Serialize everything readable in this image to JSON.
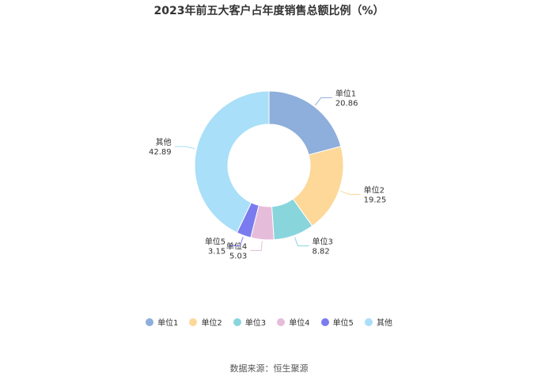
{
  "chart_data": {
    "type": "pie",
    "title": "2023年前五大客户占年度销售总额比例（%）",
    "categories": [
      "单位1",
      "单位2",
      "单位3",
      "单位4",
      "单位5",
      "其他"
    ],
    "values": [
      20.86,
      19.25,
      8.82,
      5.03,
      3.15,
      42.89
    ],
    "value_labels": [
      "20.86",
      "19.25",
      "8.82",
      "5.03",
      "3.15",
      "42.89"
    ],
    "colors": [
      "#8eaedb",
      "#fdd898",
      "#89d5dc",
      "#e6bcdb",
      "#7b7bf0",
      "#a9dff8"
    ],
    "donut": true,
    "legend_position": "bottom"
  },
  "source": "数据来源：恒生聚源"
}
